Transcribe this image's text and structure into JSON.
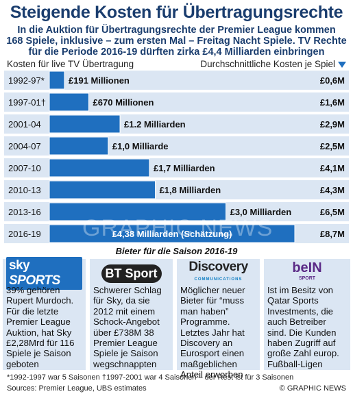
{
  "title": "Steigende Kosten für Übertragungsrechte",
  "subtitle": [
    "In die Auktion für Übertragungsrechte der Premier League kommen",
    "168 Spiele, inklusive – zum ersten Mal – Freitag Nacht Spiele. TV Rechte",
    "für die Periode 2016-19 dürften zirka £4,4 Milliarden einbringen"
  ],
  "header_left": "Kosten für live TV Übertragung",
  "header_right": "Durchschnittliche Kosten je Spiel",
  "colors": {
    "bar": "#1f6fbf",
    "row": "#dbe6f3",
    "highlight_row": "#1f6fbf",
    "title": "#1a3d6e"
  },
  "chart_data": {
    "type": "bar",
    "categories": [
      "1992-97*",
      "1997-01†",
      "2001-04",
      "2004-07",
      "2007-10",
      "2010-13",
      "2013-16",
      "2016-19"
    ],
    "values": [
      0.191,
      0.67,
      1.2,
      1.0,
      1.7,
      1.8,
      3.0,
      4.38
    ],
    "value_labels": [
      "£191 Millionen",
      "£670 Millionen",
      "£1.2 Milliarden",
      "£1,0 Milliarde",
      "£1,7 Milliarden",
      "£1,8 Milliarden",
      "£3,0 Milliarden",
      "£4,38 Milliarden (Schätzung)"
    ],
    "per_game": [
      "£0,6M",
      "£1,6M",
      "£2,9M",
      "£2,5M",
      "£4,1M",
      "£4,3M",
      "£6,5M",
      "£8,7M"
    ],
    "xlim": [
      0,
      4.6
    ],
    "highlight_index": 7
  },
  "bidders_caption": "Bieter für die Saison 2016-19",
  "bidders": [
    {
      "logo": "sky",
      "logo_text": "sky",
      "logo_text2": "SPORTS",
      "text": "39% gehören Rupert Murdoch. Für die letzte Premier League Auktion, hat Sky £2,28Mrd für 116 Spiele je Saison geboten"
    },
    {
      "logo": "bt",
      "logo_text": "BT Sport",
      "text": "Schwerer Schlag für Sky, da sie 2012 mit einem Schock-Angebot über £738M 38 Premier League Spiele je Saison wegschnappten"
    },
    {
      "logo": "discovery",
      "logo_text": "Discovery",
      "logo_sub": "COMMUNICATIONS",
      "text": "Möglicher neuer Bieter für “muss man haben” Programme. Letztes Jahr hat Discovery an Eurosport einen maßgeblichen Anteil erworben"
    },
    {
      "logo": "bein",
      "logo_text": "beIN",
      "logo_sub": "SPORT",
      "text": "Ist im Besitz von Qatar Sports Investments, die auch Betreiber sind. Die Kunden haben Zugriff auf große Zahl europ. Fußball-Ligen"
    }
  ],
  "footnote": "*1992-1997 war 5 Saisonen   †1997-2001 war 4 Saisonen – der Rest ist für 3 Saisonen",
  "sources": "Sources: Premier League, UBS estimates",
  "credit": "© GRAPHIC NEWS",
  "watermark": "GRAPHIC NEWS"
}
